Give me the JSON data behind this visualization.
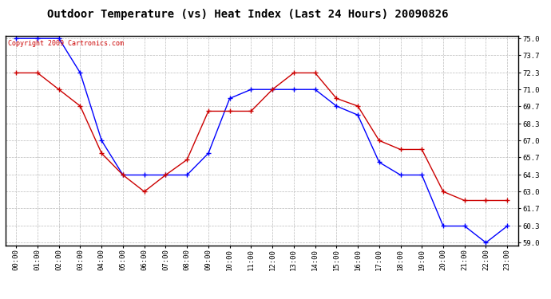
{
  "title": "Outdoor Temperature (vs) Heat Index (Last 24 Hours) 20090826",
  "copyright_text": "Copyright 2009 Cartronics.com",
  "x_labels": [
    "00:00",
    "01:00",
    "02:00",
    "03:00",
    "04:00",
    "05:00",
    "06:00",
    "07:00",
    "08:00",
    "09:00",
    "10:00",
    "11:00",
    "12:00",
    "13:00",
    "14:00",
    "15:00",
    "16:00",
    "17:00",
    "18:00",
    "19:00",
    "20:00",
    "21:00",
    "22:00",
    "23:00"
  ],
  "blue_data": [
    75.0,
    75.0,
    75.0,
    72.3,
    67.0,
    64.3,
    64.3,
    64.3,
    64.3,
    66.0,
    70.3,
    71.0,
    71.0,
    71.0,
    71.0,
    69.7,
    69.0,
    65.3,
    64.3,
    64.3,
    60.3,
    60.3,
    59.0,
    60.3
  ],
  "red_data": [
    72.3,
    72.3,
    71.0,
    69.7,
    66.0,
    64.3,
    63.0,
    64.3,
    65.5,
    69.3,
    69.3,
    69.3,
    71.0,
    72.3,
    72.3,
    70.3,
    69.7,
    67.0,
    66.3,
    66.3,
    63.0,
    62.3,
    62.3,
    62.3
  ],
  "blue_color": "#0000FF",
  "red_color": "#CC0000",
  "background_color": "#FFFFFF",
  "plot_bg_color": "#FFFFFF",
  "grid_color": "#BBBBBB",
  "ylim_min": 59.0,
  "ylim_max": 75.0,
  "yticks": [
    59.0,
    60.3,
    61.7,
    63.0,
    64.3,
    65.7,
    67.0,
    68.3,
    69.7,
    71.0,
    72.3,
    73.7,
    75.0
  ],
  "title_fontsize": 10,
  "tick_fontsize": 6.5,
  "copyright_fontsize": 6
}
